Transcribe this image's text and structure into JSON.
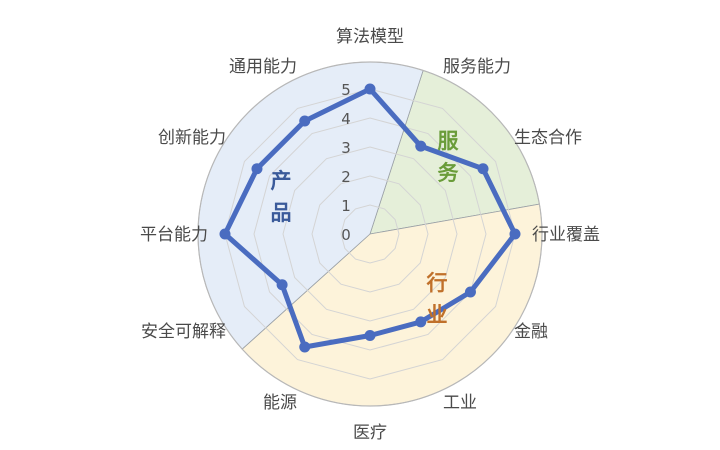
{
  "chart_data": {
    "type": "radar",
    "title": "",
    "axes": [
      "算法模型",
      "服务能力",
      "生态合作",
      "行业覆盖",
      "金融",
      "工业",
      "医疗",
      "能源",
      "安全可解释",
      "平台能力",
      "创新能力",
      "通用能力"
    ],
    "values": [
      5,
      3.5,
      4.5,
      5,
      4,
      3.5,
      3.5,
      4.5,
      3.5,
      5,
      4.5,
      4.5
    ],
    "max": 5,
    "ticks": [
      0,
      1,
      2,
      3,
      4,
      5
    ],
    "series_color": "#4a6cc0",
    "sectors": [
      {
        "label": "服务",
        "color": "#e5efd9",
        "text_color": "#6a9c3a"
      },
      {
        "label": "行业",
        "color": "#fdf3da",
        "text_color": "#c0702a"
      },
      {
        "label": "产品",
        "color": "#e5edf8",
        "text_color": "#3a5a9a"
      }
    ],
    "grid": true
  }
}
